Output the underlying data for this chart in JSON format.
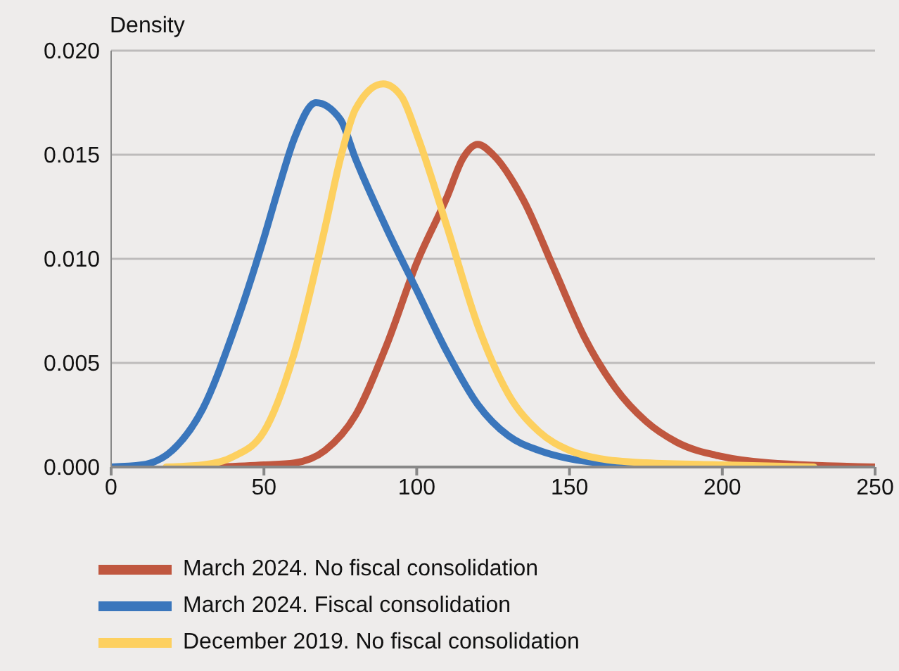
{
  "chart_data": {
    "type": "line",
    "ylabel": "Density",
    "xlim": [
      0,
      250
    ],
    "xticks": [
      0,
      50,
      100,
      150,
      200,
      250
    ],
    "ylim": [
      0,
      0.02
    ],
    "yticks": [
      {
        "value": 0,
        "label": "0.000"
      },
      {
        "value": 0.005,
        "label": "0.005"
      },
      {
        "value": 0.01,
        "label": "0.010"
      },
      {
        "value": 0.015,
        "label": "0.015"
      },
      {
        "value": 0.02,
        "label": "0.020"
      }
    ],
    "grid": "y",
    "legend": "bottom",
    "marker": "none",
    "line_style": "solid",
    "series": [
      {
        "name": "March 2024. No fiscal consolidation",
        "color": "#c0573f",
        "x": [
          35,
          50,
          60,
          70,
          80,
          90,
          100,
          110,
          115,
          120,
          125,
          135,
          145,
          155,
          165,
          175,
          185,
          200,
          215,
          250
        ],
        "values": [
          0,
          0.0001,
          0.0002,
          0.0008,
          0.0025,
          0.0058,
          0.0098,
          0.013,
          0.0148,
          0.0155,
          0.015,
          0.0128,
          0.0095,
          0.0062,
          0.0038,
          0.0022,
          0.0012,
          0.0005,
          0.0002,
          0
        ]
      },
      {
        "name": "March 2024. Fiscal consolidation",
        "color": "#3a76bc",
        "x": [
          0,
          10,
          20,
          30,
          40,
          50,
          55,
          60,
          67,
          75,
          80,
          90,
          100,
          110,
          120,
          130,
          140,
          150,
          160,
          175,
          200,
          230
        ],
        "values": [
          0,
          0.0001,
          0.0008,
          0.0028,
          0.0065,
          0.011,
          0.0135,
          0.0158,
          0.0175,
          0.0167,
          0.0148,
          0.0115,
          0.0085,
          0.0055,
          0.003,
          0.0015,
          0.0008,
          0.0004,
          0.0002,
          0.0001,
          0,
          0
        ]
      },
      {
        "name": "December 2019. No fiscal consolidation",
        "color": "#fdd05f",
        "x": [
          18,
          30,
          40,
          50,
          60,
          70,
          75,
          80,
          89,
          95,
          100,
          110,
          120,
          130,
          140,
          150,
          160,
          175,
          200,
          230
        ],
        "values": [
          0,
          0.0001,
          0.0005,
          0.0017,
          0.0055,
          0.0115,
          0.0148,
          0.0172,
          0.0184,
          0.0178,
          0.016,
          0.0115,
          0.0068,
          0.0035,
          0.0017,
          0.0008,
          0.0004,
          0.0002,
          0.0001,
          0
        ]
      }
    ]
  }
}
